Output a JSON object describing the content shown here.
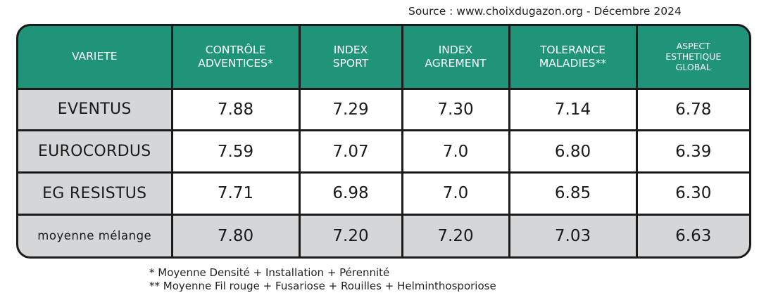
{
  "source": "Source : www.choixdugazon.org - Décembre 2024",
  "header": {
    "variete": [
      "VARIETE"
    ],
    "controle": [
      "CONTRÔLE",
      "ADVENTICES*"
    ],
    "sport": [
      "INDEX",
      "SPORT"
    ],
    "agrement": [
      "INDEX",
      "AGREMENT"
    ],
    "tolerance": [
      "TOLERANCE",
      "MALADIES**"
    ],
    "aspect": [
      "ASPECT",
      "ESTHETIQUE",
      "GLOBAL"
    ]
  },
  "chart_data": {
    "type": "table",
    "columns": [
      "VARIETE",
      "CONTRÔLE ADVENTICES*",
      "INDEX SPORT",
      "INDEX AGREMENT",
      "TOLERANCE MALADIES**",
      "ASPECT ESTHETIQUE GLOBAL"
    ],
    "rows": [
      [
        "EVENTUS",
        "7.88",
        "7.29",
        "7.30",
        "7.14",
        "6.78"
      ],
      [
        "EUROCORDUS",
        "7.59",
        "7.07",
        "7.0",
        "6.80",
        "6.39"
      ],
      [
        "EG RESISTUS",
        "7.71",
        "6.98",
        "7.0",
        "6.85",
        "6.30"
      ],
      [
        "moyenne mélange",
        "7.80",
        "7.20",
        "7.20",
        "7.03",
        "6.63"
      ]
    ]
  },
  "notes": [
    "* Moyenne Densité + Installation + Pérennité",
    "** Moyenne Fil rouge + Fusariose + Rouilles + Helminthosporiose"
  ],
  "colors": {
    "header_bg": "#1f9479",
    "name_cell_bg": "#d5d6d8",
    "border": "#1a1a1a"
  }
}
